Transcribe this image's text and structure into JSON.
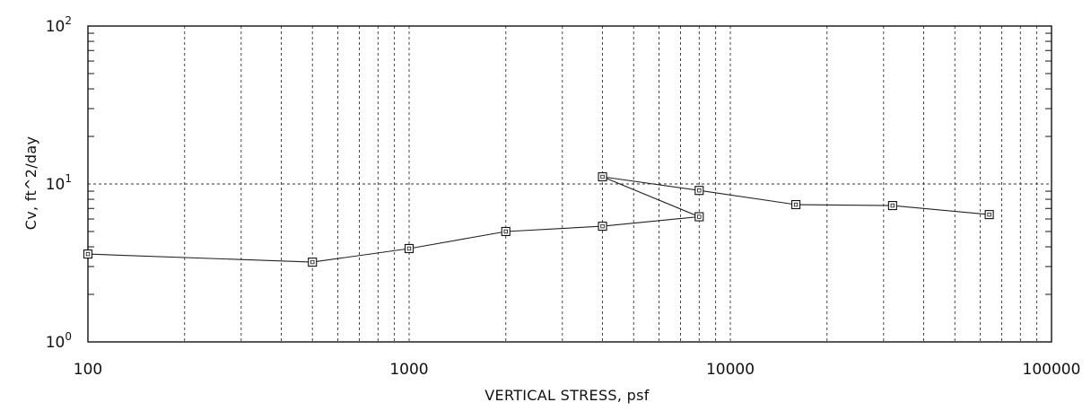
{
  "chart_data": {
    "type": "line",
    "title": "",
    "xlabel": "VERTICAL STRESS, psf",
    "ylabel": "Cv, ft^2/day",
    "x_scale": "log",
    "y_scale": "log",
    "xlim": [
      100,
      100000
    ],
    "ylim": [
      1,
      100
    ],
    "grid": true,
    "legend": "none",
    "x_tick_labels": [
      "100",
      "1000",
      "10000",
      "100000"
    ],
    "y_tick_labels": [
      {
        "base": "10",
        "exp": "0"
      },
      {
        "base": "10",
        "exp": "1"
      },
      {
        "base": "10",
        "exp": "2"
      }
    ],
    "series": [
      {
        "x": [
          100,
          500,
          1000,
          2000,
          4000,
          8000,
          4000,
          8000,
          16000,
          32000,
          64000
        ],
        "y": [
          3.6,
          3.2,
          3.9,
          5.0,
          5.4,
          6.2,
          11.1,
          9.1,
          7.4,
          7.3,
          6.4
        ]
      }
    ],
    "colors": {
      "line": "#222222",
      "marker": "#111111",
      "grid": "#333333"
    }
  }
}
